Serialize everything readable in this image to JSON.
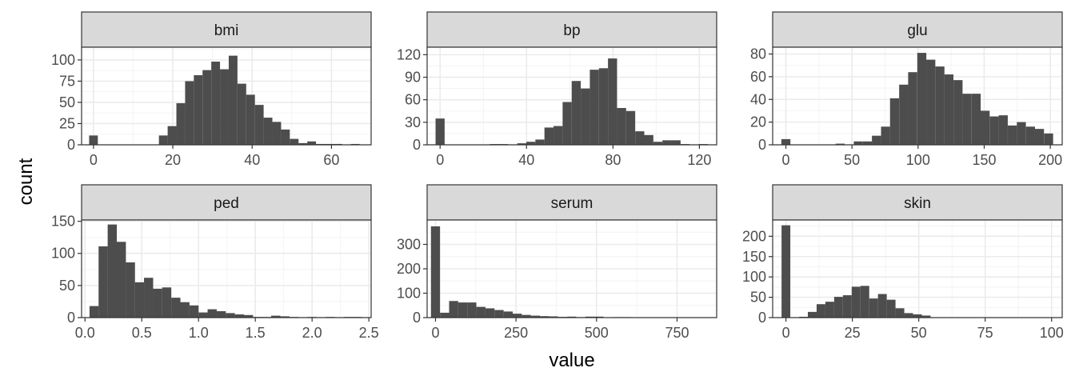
{
  "chart_data": {
    "type": "bar",
    "xlabel": "value",
    "ylabel": "count",
    "bar_color": "#4d4d4d",
    "strip_color": "#d9d9d9",
    "grid": true,
    "panels": [
      {
        "name": "bmi",
        "xlim": [
          -3,
          70
        ],
        "ylim": [
          0,
          115
        ],
        "xticks": [
          0,
          20,
          40,
          60
        ],
        "xtick_labels": [
          "0",
          "20",
          "40",
          "60"
        ],
        "yticks": [
          0,
          25,
          50,
          75,
          100
        ],
        "ytick_labels": [
          "0",
          "25",
          "50",
          "75",
          "100"
        ],
        "bin_width": 2.2,
        "bins": [
          {
            "x": 0,
            "count": 11
          },
          {
            "x": 17.6,
            "count": 11
          },
          {
            "x": 19.8,
            "count": 22
          },
          {
            "x": 22.0,
            "count": 49
          },
          {
            "x": 24.2,
            "count": 75
          },
          {
            "x": 26.4,
            "count": 82
          },
          {
            "x": 28.6,
            "count": 88
          },
          {
            "x": 30.8,
            "count": 98
          },
          {
            "x": 33.0,
            "count": 89
          },
          {
            "x": 35.2,
            "count": 105
          },
          {
            "x": 37.4,
            "count": 72
          },
          {
            "x": 39.6,
            "count": 59
          },
          {
            "x": 41.8,
            "count": 47
          },
          {
            "x": 44.0,
            "count": 32
          },
          {
            "x": 46.2,
            "count": 27
          },
          {
            "x": 48.4,
            "count": 18
          },
          {
            "x": 50.6,
            "count": 7
          },
          {
            "x": 52.8,
            "count": 2
          },
          {
            "x": 55.0,
            "count": 4
          },
          {
            "x": 57.2,
            "count": 1
          },
          {
            "x": 59.4,
            "count": 1
          },
          {
            "x": 61.6,
            "count": 1
          },
          {
            "x": 66.0,
            "count": 1
          }
        ]
      },
      {
        "name": "bp",
        "xlim": [
          -6,
          128
        ],
        "ylim": [
          0,
          130
        ],
        "xticks": [
          0,
          40,
          80,
          120
        ],
        "xtick_labels": [
          "0",
          "40",
          "80",
          "120"
        ],
        "yticks": [
          0,
          30,
          60,
          90,
          120
        ],
        "ytick_labels": [
          "0",
          "30",
          "60",
          "90",
          "120"
        ],
        "bin_width": 4.2,
        "bins": [
          {
            "x": 0,
            "count": 35
          },
          {
            "x": 25.2,
            "count": 1
          },
          {
            "x": 29.4,
            "count": 1
          },
          {
            "x": 37.8,
            "count": 2
          },
          {
            "x": 42.0,
            "count": 4
          },
          {
            "x": 46.2,
            "count": 7
          },
          {
            "x": 50.4,
            "count": 23
          },
          {
            "x": 54.6,
            "count": 25
          },
          {
            "x": 58.8,
            "count": 57
          },
          {
            "x": 63.0,
            "count": 85
          },
          {
            "x": 67.2,
            "count": 75
          },
          {
            "x": 71.4,
            "count": 100
          },
          {
            "x": 75.6,
            "count": 102
          },
          {
            "x": 79.8,
            "count": 115
          },
          {
            "x": 84.0,
            "count": 49
          },
          {
            "x": 88.2,
            "count": 45
          },
          {
            "x": 92.4,
            "count": 18
          },
          {
            "x": 96.6,
            "count": 13
          },
          {
            "x": 100.8,
            "count": 4
          },
          {
            "x": 105.0,
            "count": 6
          },
          {
            "x": 109.2,
            "count": 6
          },
          {
            "x": 113.4,
            "count": 1
          },
          {
            "x": 121.8,
            "count": 1
          }
        ]
      },
      {
        "name": "glu",
        "xlim": [
          -10,
          209
        ],
        "ylim": [
          0,
          86
        ],
        "xticks": [
          0,
          50,
          100,
          150,
          200
        ],
        "xtick_labels": [
          "0",
          "50",
          "100",
          "150",
          "200"
        ],
        "yticks": [
          0,
          20,
          40,
          60,
          80
        ],
        "ytick_labels": [
          "0",
          "20",
          "40",
          "60",
          "80"
        ],
        "bin_width": 6.85,
        "bins": [
          {
            "x": 0,
            "count": 5
          },
          {
            "x": 41.1,
            "count": 1
          },
          {
            "x": 54.8,
            "count": 3
          },
          {
            "x": 61.7,
            "count": 3
          },
          {
            "x": 68.5,
            "count": 8
          },
          {
            "x": 75.4,
            "count": 16
          },
          {
            "x": 82.2,
            "count": 41
          },
          {
            "x": 89.1,
            "count": 53
          },
          {
            "x": 95.9,
            "count": 64
          },
          {
            "x": 102.8,
            "count": 81
          },
          {
            "x": 109.6,
            "count": 75
          },
          {
            "x": 116.5,
            "count": 69
          },
          {
            "x": 123.3,
            "count": 62
          },
          {
            "x": 130.2,
            "count": 57
          },
          {
            "x": 137.0,
            "count": 45
          },
          {
            "x": 143.9,
            "count": 45
          },
          {
            "x": 150.7,
            "count": 30
          },
          {
            "x": 157.6,
            "count": 25
          },
          {
            "x": 164.4,
            "count": 26
          },
          {
            "x": 171.3,
            "count": 17
          },
          {
            "x": 178.1,
            "count": 20
          },
          {
            "x": 185.0,
            "count": 16
          },
          {
            "x": 191.8,
            "count": 14
          },
          {
            "x": 198.7,
            "count": 10
          }
        ]
      },
      {
        "name": "ped",
        "xlim": [
          -0.03,
          2.52
        ],
        "ylim": [
          0,
          152
        ],
        "xticks": [
          0.0,
          0.5,
          1.0,
          1.5,
          2.0,
          2.5
        ],
        "xtick_labels": [
          "0.0",
          "0.5",
          "1.0",
          "1.5",
          "2.0",
          "2.5"
        ],
        "yticks": [
          0,
          50,
          100,
          150
        ],
        "ytick_labels": [
          "0",
          "50",
          "100",
          "150"
        ],
        "bin_width": 0.0805,
        "bins": [
          {
            "x": 0.08,
            "count": 18
          },
          {
            "x": 0.16,
            "count": 111
          },
          {
            "x": 0.24,
            "count": 145
          },
          {
            "x": 0.32,
            "count": 118
          },
          {
            "x": 0.4,
            "count": 86
          },
          {
            "x": 0.48,
            "count": 55
          },
          {
            "x": 0.56,
            "count": 62
          },
          {
            "x": 0.64,
            "count": 45
          },
          {
            "x": 0.72,
            "count": 47
          },
          {
            "x": 0.8,
            "count": 31
          },
          {
            "x": 0.88,
            "count": 24
          },
          {
            "x": 0.96,
            "count": 19
          },
          {
            "x": 1.04,
            "count": 8
          },
          {
            "x": 1.12,
            "count": 13
          },
          {
            "x": 1.2,
            "count": 10
          },
          {
            "x": 1.28,
            "count": 7
          },
          {
            "x": 1.36,
            "count": 5
          },
          {
            "x": 1.44,
            "count": 4
          },
          {
            "x": 1.52,
            "count": 1
          },
          {
            "x": 1.6,
            "count": 1
          },
          {
            "x": 1.68,
            "count": 3
          },
          {
            "x": 1.76,
            "count": 2
          },
          {
            "x": 1.84,
            "count": 1
          },
          {
            "x": 2.0,
            "count": 1
          },
          {
            "x": 2.16,
            "count": 1
          },
          {
            "x": 2.32,
            "count": 1
          },
          {
            "x": 2.4,
            "count": 1
          }
        ]
      },
      {
        "name": "serum",
        "xlim": [
          -26,
          873
        ],
        "ylim": [
          0,
          400
        ],
        "xticks": [
          0,
          250,
          500,
          750
        ],
        "xtick_labels": [
          "0",
          "250",
          "500",
          "750"
        ],
        "yticks": [
          0,
          100,
          200,
          300
        ],
        "ytick_labels": [
          "0",
          "100",
          "200",
          "300"
        ],
        "bin_width": 28.2,
        "bins": [
          {
            "x": 0,
            "count": 374
          },
          {
            "x": 28.2,
            "count": 20
          },
          {
            "x": 56.4,
            "count": 68
          },
          {
            "x": 84.6,
            "count": 62
          },
          {
            "x": 112.8,
            "count": 62
          },
          {
            "x": 141.0,
            "count": 44
          },
          {
            "x": 169.2,
            "count": 38
          },
          {
            "x": 197.4,
            "count": 31
          },
          {
            "x": 225.6,
            "count": 25
          },
          {
            "x": 253.8,
            "count": 16
          },
          {
            "x": 282.0,
            "count": 11
          },
          {
            "x": 310.2,
            "count": 8
          },
          {
            "x": 338.4,
            "count": 6
          },
          {
            "x": 366.6,
            "count": 5
          },
          {
            "x": 394.8,
            "count": 3
          },
          {
            "x": 423.0,
            "count": 4
          },
          {
            "x": 451.2,
            "count": 2
          },
          {
            "x": 479.4,
            "count": 4
          },
          {
            "x": 507.6,
            "count": 4
          },
          {
            "x": 535.8,
            "count": 1
          },
          {
            "x": 564.0,
            "count": 2
          },
          {
            "x": 592.2,
            "count": 2
          },
          {
            "x": 620.4,
            "count": 1
          },
          {
            "x": 676.8,
            "count": 1
          },
          {
            "x": 761.4,
            "count": 1
          },
          {
            "x": 846.0,
            "count": 1
          }
        ]
      },
      {
        "name": "skin",
        "xlim": [
          -5,
          104
        ],
        "ylim": [
          0,
          240
        ],
        "xticks": [
          0,
          25,
          50,
          75,
          100
        ],
        "xtick_labels": [
          "0",
          "25",
          "50",
          "75",
          "100"
        ],
        "yticks": [
          0,
          50,
          100,
          150,
          200
        ],
        "ytick_labels": [
          "0",
          "50",
          "100",
          "150",
          "200"
        ],
        "bin_width": 3.3,
        "bins": [
          {
            "x": 0,
            "count": 227
          },
          {
            "x": 6.6,
            "count": 2
          },
          {
            "x": 9.9,
            "count": 14
          },
          {
            "x": 13.2,
            "count": 33
          },
          {
            "x": 16.5,
            "count": 39
          },
          {
            "x": 19.8,
            "count": 51
          },
          {
            "x": 23.1,
            "count": 55
          },
          {
            "x": 26.4,
            "count": 76
          },
          {
            "x": 29.7,
            "count": 78
          },
          {
            "x": 33.0,
            "count": 47
          },
          {
            "x": 36.3,
            "count": 58
          },
          {
            "x": 39.6,
            "count": 44
          },
          {
            "x": 42.9,
            "count": 23
          },
          {
            "x": 46.2,
            "count": 11
          },
          {
            "x": 49.5,
            "count": 8
          },
          {
            "x": 52.8,
            "count": 5
          },
          {
            "x": 56.1,
            "count": 1
          },
          {
            "x": 62.7,
            "count": 1
          },
          {
            "x": 99.0,
            "count": 1
          }
        ]
      }
    ]
  }
}
